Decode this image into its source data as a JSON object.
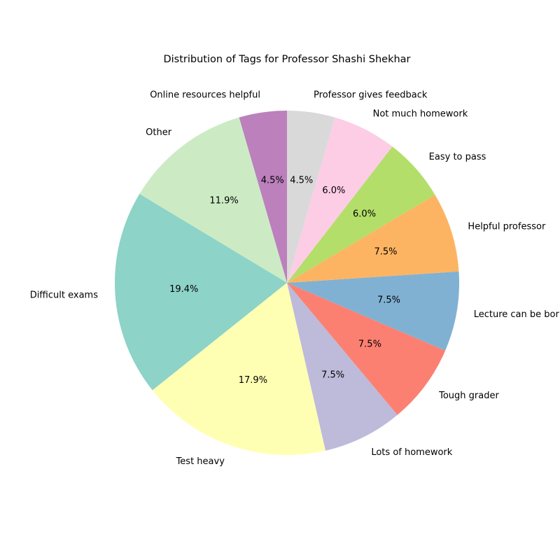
{
  "chart_data": {
    "type": "pie",
    "title": "Distribution of Tags for Professor Shashi Shekhar",
    "start_angle_deg": 90,
    "direction": "counterclockwise",
    "slices": [
      {
        "label": "Online resources helpful",
        "value": 4.5,
        "pct_text": "4.5%",
        "color": "#bc80bd"
      },
      {
        "label": "Other",
        "value": 11.9,
        "pct_text": "11.9%",
        "color": "#ccebc5"
      },
      {
        "label": "Difficult exams",
        "value": 19.4,
        "pct_text": "19.4%",
        "color": "#8dd3c7"
      },
      {
        "label": "Test heavy",
        "value": 17.9,
        "pct_text": "17.9%",
        "color": "#ffffb3"
      },
      {
        "label": "Lots of homework",
        "value": 7.5,
        "pct_text": "7.5%",
        "color": "#bebada"
      },
      {
        "label": "Tough grader",
        "value": 7.5,
        "pct_text": "7.5%",
        "color": "#fb8072"
      },
      {
        "label": "Lecture can be boring",
        "value": 7.5,
        "pct_text": "7.5%",
        "color": "#80b1d3"
      },
      {
        "label": "Helpful professor",
        "value": 7.5,
        "pct_text": "7.5%",
        "color": "#fdb462"
      },
      {
        "label": "Easy to pass",
        "value": 6.0,
        "pct_text": "6.0%",
        "color": "#b3de69"
      },
      {
        "label": "Not much homework",
        "value": 6.0,
        "pct_text": "6.0%",
        "color": "#fccde5"
      },
      {
        "label": "Professor gives feedback",
        "value": 4.5,
        "pct_text": "4.5%",
        "color": "#d9d9d9"
      }
    ]
  }
}
